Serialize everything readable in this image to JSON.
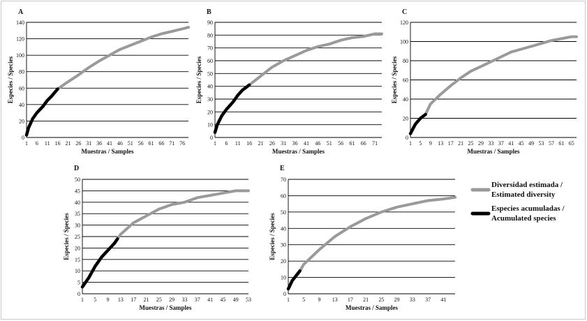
{
  "colors": {
    "estimated": "#9a9a9a",
    "accumulated": "#000000",
    "grid": "#000000"
  },
  "legend": {
    "estimated_line1": "Diversidad estimada /",
    "estimated_line2": "Estimated diversity",
    "accumulated_line1": "Especies acumuladas /",
    "accumulated_line2": "Acumulated species"
  },
  "chart_data": [
    {
      "type": "line",
      "panel": "A",
      "xlabel": "Muestras / Samples",
      "ylabel": "Especies / Species",
      "xticks": [
        1,
        6,
        11,
        16,
        21,
        26,
        31,
        36,
        41,
        46,
        51,
        56,
        61,
        66,
        71,
        76
      ],
      "xlim": [
        1,
        79
      ],
      "ylim": [
        0,
        140
      ],
      "ystep": 20,
      "series": [
        {
          "role": "estimated",
          "x": [
            16,
            20,
            26,
            31,
            36,
            41,
            46,
            51,
            56,
            61,
            66,
            71,
            76,
            79
          ],
          "y": [
            59,
            66,
            76,
            85,
            93,
            100,
            107,
            112,
            117,
            122,
            126,
            129,
            132,
            134
          ]
        },
        {
          "role": "accumulated",
          "x": [
            1,
            2,
            4,
            6,
            9,
            11,
            13,
            16
          ],
          "y": [
            3,
            12,
            23,
            30,
            38,
            45,
            50,
            59
          ]
        }
      ]
    },
    {
      "type": "line",
      "panel": "B",
      "xlabel": "Muestras / Samples",
      "ylabel": "Especies / Species",
      "xticks": [
        1,
        6,
        11,
        16,
        21,
        26,
        31,
        36,
        41,
        46,
        51,
        56,
        61,
        66,
        71
      ],
      "xlim": [
        1,
        74
      ],
      "ylim": [
        0,
        90
      ],
      "ystep": 10,
      "series": [
        {
          "role": "estimated",
          "x": [
            16,
            21,
            26,
            31,
            36,
            41,
            46,
            51,
            56,
            61,
            66,
            71,
            74
          ],
          "y": [
            41,
            48,
            55,
            60,
            64,
            68,
            71,
            73,
            76,
            78,
            79,
            81,
            81
          ]
        },
        {
          "role": "accumulated",
          "x": [
            1,
            2,
            4,
            6,
            9,
            11,
            13,
            16
          ],
          "y": [
            4,
            10,
            17,
            22,
            28,
            33,
            37,
            41
          ]
        }
      ]
    },
    {
      "type": "line",
      "panel": "C",
      "xlabel": "Muestras / Samples",
      "ylabel": "Especies / Species",
      "xticks": [
        1,
        5,
        9,
        13,
        17,
        21,
        25,
        29,
        33,
        37,
        41,
        45,
        49,
        53,
        57,
        61,
        65
      ],
      "xlim": [
        1,
        67
      ],
      "ylim": [
        0,
        120
      ],
      "ystep": 20,
      "series": [
        {
          "role": "estimated",
          "x": [
            7,
            9,
            13,
            17,
            21,
            25,
            29,
            33,
            37,
            41,
            45,
            49,
            53,
            57,
            61,
            65,
            67
          ],
          "y": [
            24,
            35,
            45,
            54,
            62,
            69,
            74,
            79,
            84,
            89,
            92,
            95,
            98,
            101,
            103,
            105,
            105
          ]
        },
        {
          "role": "accumulated",
          "x": [
            1,
            2,
            3,
            5,
            7
          ],
          "y": [
            4,
            9,
            14,
            20,
            24
          ]
        }
      ]
    },
    {
      "type": "line",
      "panel": "D",
      "xlabel": "Muestras / Samples",
      "ylabel": "Especies / Species",
      "xticks": [
        1,
        5,
        9,
        13,
        17,
        21,
        25,
        29,
        33,
        37,
        41,
        45,
        49,
        53
      ],
      "xlim": [
        1,
        53
      ],
      "ylim": [
        0,
        50
      ],
      "ystep": 5,
      "series": [
        {
          "role": "estimated",
          "x": [
            12,
            13,
            17,
            21,
            25,
            29,
            33,
            37,
            41,
            45,
            49,
            53
          ],
          "y": [
            24,
            26,
            31,
            34,
            37,
            39,
            40,
            42,
            43,
            44,
            45,
            45
          ]
        },
        {
          "role": "accumulated",
          "x": [
            1,
            3,
            5,
            7,
            9,
            11,
            12
          ],
          "y": [
            3,
            7,
            12,
            16,
            19,
            22,
            24
          ]
        }
      ]
    },
    {
      "type": "line",
      "panel": "E",
      "xlabel": "Muestras / Samples",
      "ylabel": "Especies / Species",
      "xticks": [
        1,
        5,
        9,
        13,
        17,
        21,
        25,
        29,
        33,
        37,
        41
      ],
      "xlim": [
        1,
        44
      ],
      "ylim": [
        0,
        70
      ],
      "ystep": 10,
      "series": [
        {
          "role": "estimated",
          "x": [
            4,
            5,
            9,
            13,
            17,
            21,
            25,
            29,
            33,
            37,
            41,
            44
          ],
          "y": [
            14,
            18,
            27,
            35,
            41,
            46,
            50,
            53,
            55,
            57,
            58,
            59
          ]
        },
        {
          "role": "accumulated",
          "x": [
            1,
            2,
            3,
            4
          ],
          "y": [
            3,
            8,
            11,
            14
          ]
        }
      ]
    }
  ]
}
